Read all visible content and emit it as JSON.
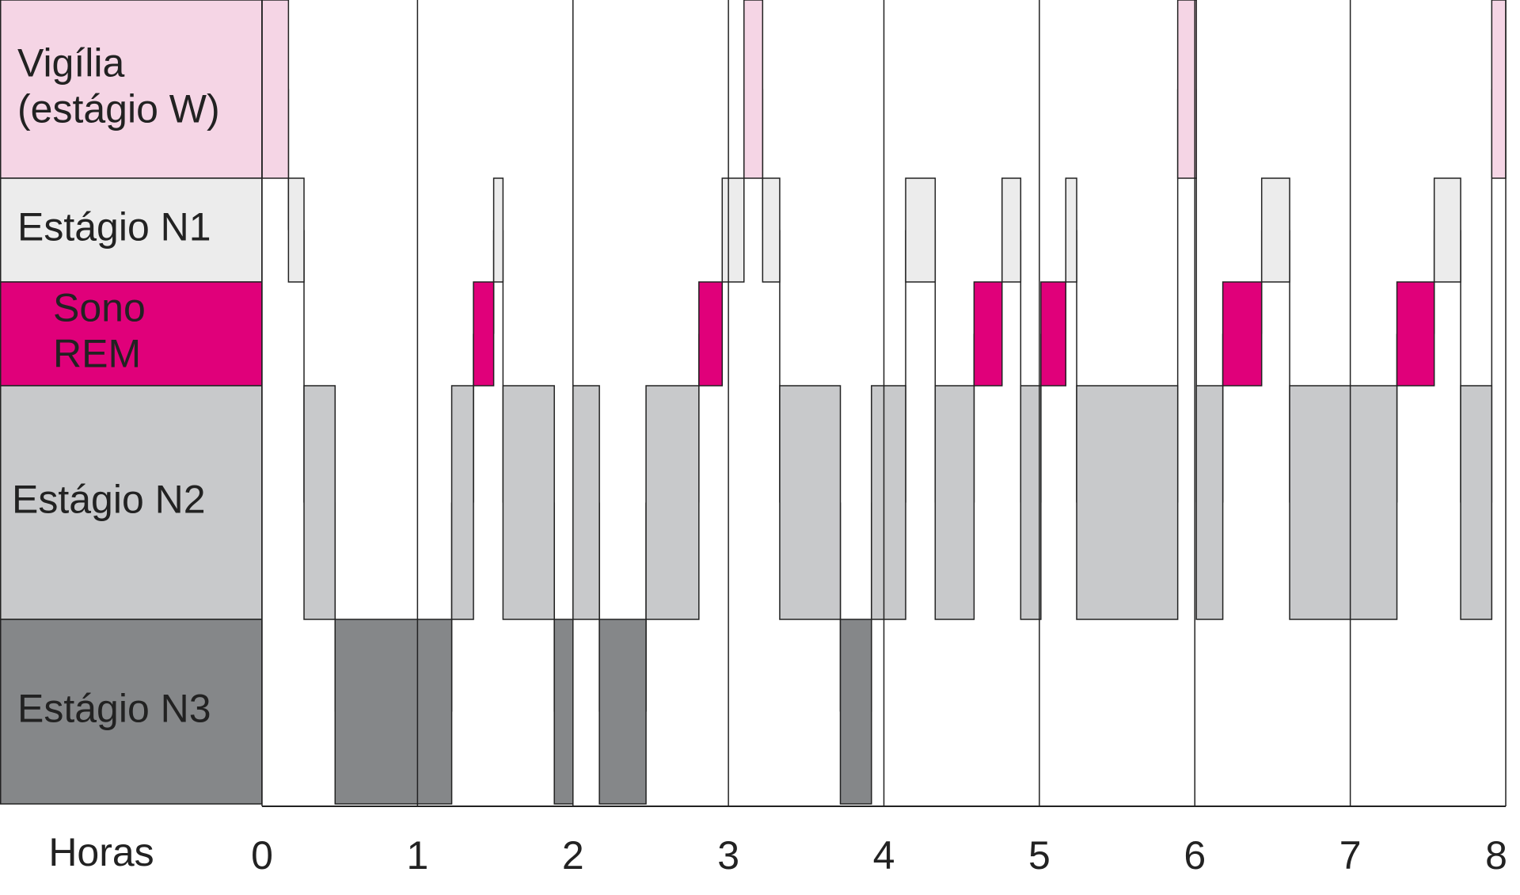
{
  "chart_data": {
    "type": "hypnogram",
    "x_label": "Horas",
    "xlim": [
      0,
      8
    ],
    "xticks": [
      0,
      1,
      2,
      3,
      4,
      5,
      6,
      7,
      8
    ],
    "grid": true,
    "series": [
      {
        "name": [
          "Vigília",
          "(estágio W)"
        ],
        "color": "#f5d5e5",
        "intervals": [
          [
            0,
            0.17
          ],
          [
            3.1,
            3.22
          ],
          [
            5.89,
            6.01
          ],
          [
            7.91,
            8.0
          ]
        ]
      },
      {
        "name": [
          "Estágio N1"
        ],
        "color": "#ececec",
        "intervals": [
          [
            0.17,
            0.27
          ],
          [
            1.49,
            1.55
          ],
          [
            2.96,
            3.1
          ],
          [
            3.22,
            3.33
          ],
          [
            4.14,
            4.33
          ],
          [
            4.76,
            4.88
          ],
          [
            5.17,
            5.24
          ],
          [
            6.43,
            6.61
          ],
          [
            7.54,
            7.71
          ]
        ]
      },
      {
        "name": [
          "Sono",
          "REM"
        ],
        "color": "#e0007a",
        "intervals": [
          [
            1.36,
            1.49
          ],
          [
            2.81,
            2.96
          ],
          [
            4.58,
            4.76
          ],
          [
            5.01,
            5.17
          ],
          [
            6.18,
            6.43
          ],
          [
            7.3,
            7.54
          ]
        ]
      },
      {
        "name": [
          "Estágio N2"
        ],
        "color": "#c8c9cb",
        "intervals": [
          [
            0.27,
            0.47
          ],
          [
            1.22,
            1.36
          ],
          [
            1.55,
            1.88
          ],
          [
            2.0,
            2.17
          ],
          [
            2.47,
            2.81
          ],
          [
            3.33,
            3.72
          ],
          [
            3.92,
            4.14
          ],
          [
            4.33,
            4.58
          ],
          [
            4.88,
            5.01
          ],
          [
            5.24,
            5.89
          ],
          [
            6.01,
            6.18
          ],
          [
            6.61,
            7.3
          ],
          [
            7.71,
            7.91
          ]
        ]
      },
      {
        "name": [
          "Estágio N3"
        ],
        "color": "#858789",
        "intervals": [
          [
            0.47,
            1.22
          ],
          [
            1.88,
            2.0
          ],
          [
            2.17,
            2.47
          ],
          [
            3.72,
            3.92
          ]
        ]
      }
    ]
  }
}
